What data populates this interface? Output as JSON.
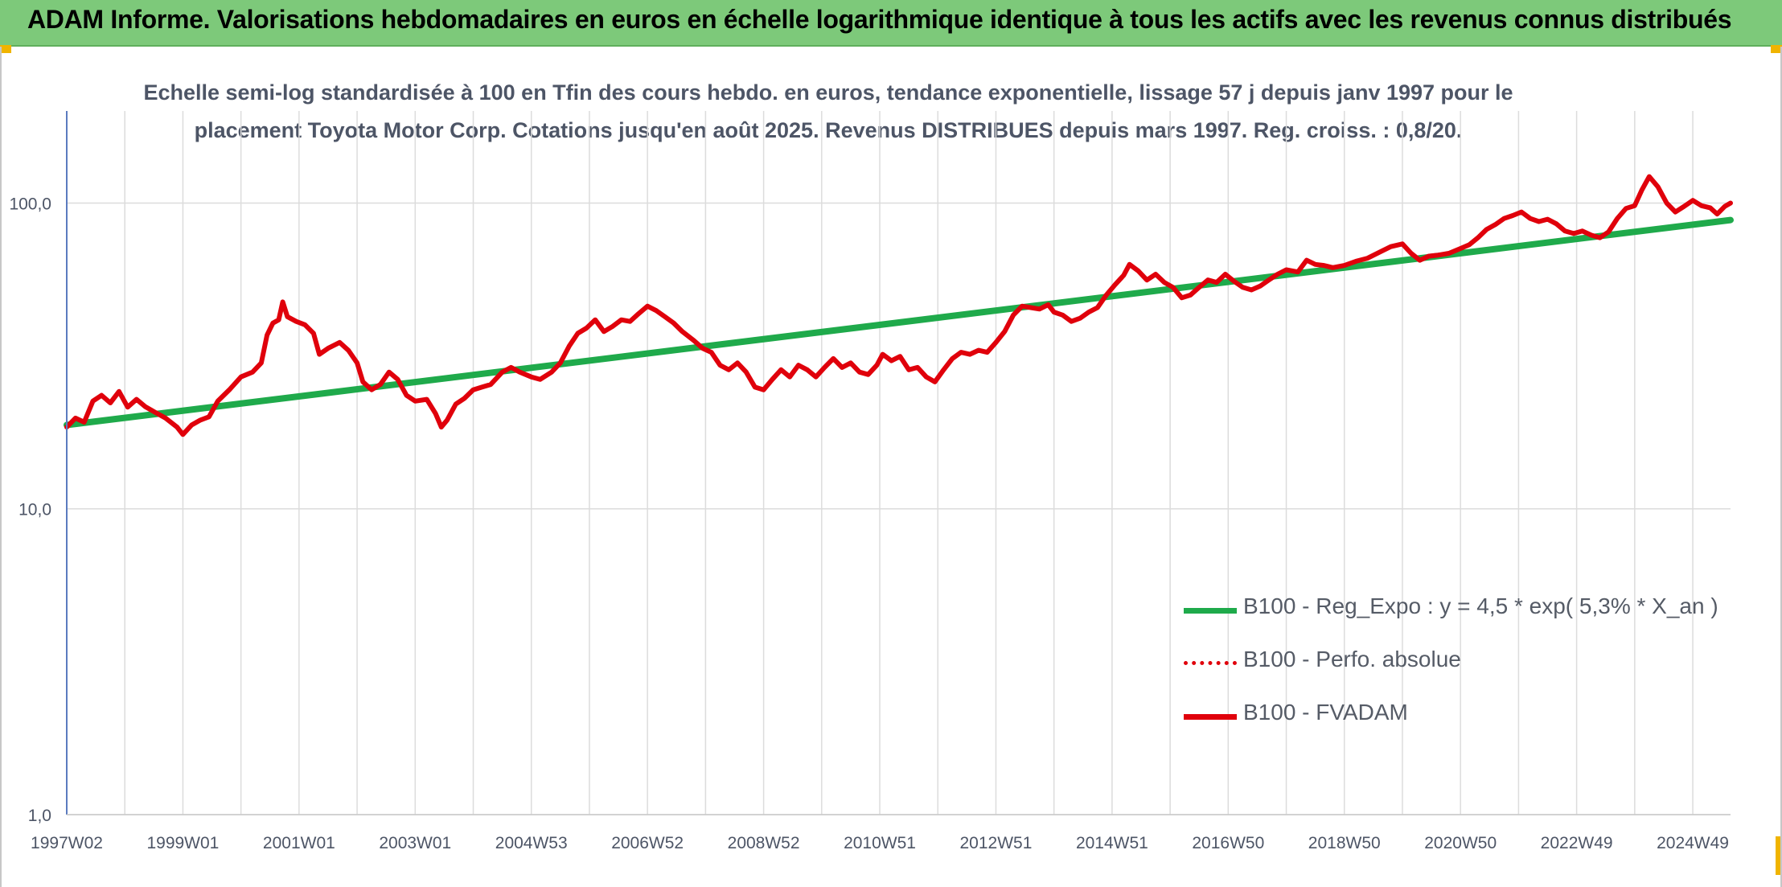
{
  "header": {
    "title": "ADAM Informe. Valorisations hebdomadaires en euros en échelle logarithmique identique à tous les actifs avec les revenus connus distribués"
  },
  "chart_data": {
    "type": "line",
    "title_lines": [
      "Echelle semi-log standardisée à 100 en Tfin des cours hebdo. en euros, tendance exponentielle, lissage 57 j depuis janv 1997 pour le",
      "placement Toyota Motor Corp. Cotations jusqu'en août 2025. Revenus DISTRIBUES depuis mars 1997. Reg. croiss. : 0,8/20."
    ],
    "y_scale": "log",
    "ylim": [
      1,
      200
    ],
    "y_ticks": [
      "1,0",
      "10,0",
      "100,0"
    ],
    "x_range": [
      1997.0,
      2025.65
    ],
    "x_ticks": [
      {
        "label": "1997W02",
        "year": 1997.0
      },
      {
        "label": "1999W01",
        "year": 1999.0
      },
      {
        "label": "2001W01",
        "year": 2001.0
      },
      {
        "label": "2003W01",
        "year": 2003.0
      },
      {
        "label": "2004W53",
        "year": 2005.0
      },
      {
        "label": "2006W52",
        "year": 2007.0
      },
      {
        "label": "2008W52",
        "year": 2009.0
      },
      {
        "label": "2010W51",
        "year": 2011.0
      },
      {
        "label": "2012W51",
        "year": 2013.0
      },
      {
        "label": "2014W51",
        "year": 2015.0
      },
      {
        "label": "2016W50",
        "year": 2017.0
      },
      {
        "label": "2018W50",
        "year": 2019.0
      },
      {
        "label": "2020W50",
        "year": 2021.0
      },
      {
        "label": "2022W49",
        "year": 2023.0
      },
      {
        "label": "2024W49",
        "year": 2025.0
      }
    ],
    "grid": "vertical-and-horizontal",
    "legend_position": "bottom-right",
    "series": [
      {
        "name": "B100 - Reg_Expo : y = 4,5 * exp( 5,3% *  X_an )",
        "color": "#1faa4b",
        "style": "solid",
        "points": [
          [
            1997.0,
            18.8
          ],
          [
            2025.65,
            88.0
          ]
        ]
      },
      {
        "name": "B100 - Perfo. absolue",
        "color": "#e0000b",
        "style": "dotted",
        "points": []
      },
      {
        "name": "B100 - FVADAM",
        "color": "#e0000b",
        "style": "solid",
        "points": [
          [
            1997.0,
            18.5
          ],
          [
            1997.15,
            19.8
          ],
          [
            1997.3,
            19.2
          ],
          [
            1997.45,
            22.5
          ],
          [
            1997.6,
            23.5
          ],
          [
            1997.75,
            22.2
          ],
          [
            1997.9,
            24.2
          ],
          [
            1998.05,
            21.5
          ],
          [
            1998.2,
            22.8
          ],
          [
            1998.35,
            21.6
          ],
          [
            1998.5,
            20.8
          ],
          [
            1998.7,
            19.8
          ],
          [
            1998.9,
            18.5
          ],
          [
            1999.0,
            17.5
          ],
          [
            1999.15,
            18.8
          ],
          [
            1999.3,
            19.5
          ],
          [
            1999.45,
            20.0
          ],
          [
            1999.6,
            22.5
          ],
          [
            1999.8,
            24.5
          ],
          [
            2000.0,
            27.0
          ],
          [
            2000.2,
            28.0
          ],
          [
            2000.35,
            30.0
          ],
          [
            2000.45,
            37.0
          ],
          [
            2000.55,
            40.5
          ],
          [
            2000.65,
            41.5
          ],
          [
            2000.72,
            47.5
          ],
          [
            2000.8,
            42.5
          ],
          [
            2000.95,
            41.0
          ],
          [
            2001.1,
            40.0
          ],
          [
            2001.25,
            37.5
          ],
          [
            2001.35,
            32.0
          ],
          [
            2001.5,
            33.5
          ],
          [
            2001.7,
            35.0
          ],
          [
            2001.85,
            33.0
          ],
          [
            2002.0,
            30.0
          ],
          [
            2002.1,
            26.0
          ],
          [
            2002.25,
            24.5
          ],
          [
            2002.4,
            25.5
          ],
          [
            2002.55,
            28.0
          ],
          [
            2002.7,
            26.5
          ],
          [
            2002.85,
            23.5
          ],
          [
            2003.0,
            22.5
          ],
          [
            2003.2,
            22.8
          ],
          [
            2003.35,
            20.5
          ],
          [
            2003.45,
            18.5
          ],
          [
            2003.55,
            19.5
          ],
          [
            2003.7,
            22.0
          ],
          [
            2003.85,
            23.0
          ],
          [
            2004.0,
            24.5
          ],
          [
            2004.15,
            25.0
          ],
          [
            2004.3,
            25.5
          ],
          [
            2004.5,
            28.0
          ],
          [
            2004.65,
            29.0
          ],
          [
            2004.8,
            28.0
          ],
          [
            2005.0,
            27.0
          ],
          [
            2005.15,
            26.5
          ],
          [
            2005.35,
            28.0
          ],
          [
            2005.5,
            30.0
          ],
          [
            2005.65,
            34.0
          ],
          [
            2005.8,
            37.5
          ],
          [
            2005.95,
            39.0
          ],
          [
            2006.1,
            41.5
          ],
          [
            2006.25,
            38.0
          ],
          [
            2006.4,
            39.5
          ],
          [
            2006.55,
            41.5
          ],
          [
            2006.7,
            41.0
          ],
          [
            2006.85,
            43.5
          ],
          [
            2007.0,
            46.0
          ],
          [
            2007.15,
            44.5
          ],
          [
            2007.3,
            42.5
          ],
          [
            2007.45,
            40.5
          ],
          [
            2007.6,
            38.0
          ],
          [
            2007.8,
            35.5
          ],
          [
            2007.95,
            33.5
          ],
          [
            2008.1,
            32.5
          ],
          [
            2008.25,
            29.5
          ],
          [
            2008.4,
            28.5
          ],
          [
            2008.55,
            30.0
          ],
          [
            2008.7,
            28.0
          ],
          [
            2008.85,
            25.0
          ],
          [
            2009.0,
            24.5
          ],
          [
            2009.15,
            26.5
          ],
          [
            2009.3,
            28.5
          ],
          [
            2009.45,
            27.0
          ],
          [
            2009.6,
            29.5
          ],
          [
            2009.75,
            28.5
          ],
          [
            2009.9,
            27.0
          ],
          [
            2010.05,
            29.0
          ],
          [
            2010.2,
            31.0
          ],
          [
            2010.35,
            29.0
          ],
          [
            2010.5,
            30.0
          ],
          [
            2010.65,
            28.0
          ],
          [
            2010.8,
            27.5
          ],
          [
            2010.95,
            29.5
          ],
          [
            2011.05,
            32.0
          ],
          [
            2011.2,
            30.5
          ],
          [
            2011.35,
            31.5
          ],
          [
            2011.5,
            28.5
          ],
          [
            2011.65,
            29.0
          ],
          [
            2011.8,
            27.0
          ],
          [
            2011.95,
            26.0
          ],
          [
            2012.1,
            28.5
          ],
          [
            2012.25,
            31.0
          ],
          [
            2012.4,
            32.5
          ],
          [
            2012.55,
            32.0
          ],
          [
            2012.7,
            33.0
          ],
          [
            2012.85,
            32.5
          ],
          [
            2013.0,
            35.0
          ],
          [
            2013.15,
            38.0
          ],
          [
            2013.3,
            43.0
          ],
          [
            2013.45,
            46.0
          ],
          [
            2013.6,
            45.5
          ],
          [
            2013.75,
            45.0
          ],
          [
            2013.9,
            46.5
          ],
          [
            2014.0,
            44.0
          ],
          [
            2014.15,
            43.0
          ],
          [
            2014.3,
            41.0
          ],
          [
            2014.45,
            42.0
          ],
          [
            2014.6,
            44.0
          ],
          [
            2014.75,
            45.5
          ],
          [
            2014.9,
            50.0
          ],
          [
            2015.05,
            54.0
          ],
          [
            2015.2,
            58.0
          ],
          [
            2015.3,
            63.0
          ],
          [
            2015.45,
            60.0
          ],
          [
            2015.6,
            56.0
          ],
          [
            2015.75,
            58.5
          ],
          [
            2015.9,
            55.0
          ],
          [
            2016.05,
            53.0
          ],
          [
            2016.2,
            49.0
          ],
          [
            2016.35,
            50.0
          ],
          [
            2016.5,
            53.0
          ],
          [
            2016.65,
            56.0
          ],
          [
            2016.8,
            55.0
          ],
          [
            2016.95,
            58.5
          ],
          [
            2017.1,
            55.5
          ],
          [
            2017.25,
            53.0
          ],
          [
            2017.4,
            52.0
          ],
          [
            2017.55,
            53.5
          ],
          [
            2017.7,
            56.0
          ],
          [
            2017.85,
            58.5
          ],
          [
            2018.0,
            60.5
          ],
          [
            2018.2,
            59.5
          ],
          [
            2018.35,
            65.0
          ],
          [
            2018.5,
            63.0
          ],
          [
            2018.65,
            62.5
          ],
          [
            2018.8,
            61.5
          ],
          [
            2019.0,
            62.5
          ],
          [
            2019.2,
            64.5
          ],
          [
            2019.4,
            66.0
          ],
          [
            2019.6,
            69.0
          ],
          [
            2019.8,
            72.0
          ],
          [
            2020.0,
            73.5
          ],
          [
            2020.15,
            68.5
          ],
          [
            2020.3,
            65.0
          ],
          [
            2020.45,
            67.0
          ],
          [
            2020.6,
            67.5
          ],
          [
            2020.8,
            68.5
          ],
          [
            2021.0,
            71.0
          ],
          [
            2021.15,
            73.0
          ],
          [
            2021.3,
            77.0
          ],
          [
            2021.45,
            82.0
          ],
          [
            2021.6,
            85.0
          ],
          [
            2021.75,
            89.0
          ],
          [
            2021.9,
            91.0
          ],
          [
            2022.05,
            93.5
          ],
          [
            2022.2,
            89.0
          ],
          [
            2022.35,
            87.0
          ],
          [
            2022.5,
            88.5
          ],
          [
            2022.65,
            85.5
          ],
          [
            2022.8,
            81.0
          ],
          [
            2022.95,
            79.5
          ],
          [
            2023.1,
            81.0
          ],
          [
            2023.25,
            78.5
          ],
          [
            2023.4,
            77.0
          ],
          [
            2023.55,
            80.5
          ],
          [
            2023.7,
            89.0
          ],
          [
            2023.85,
            96.0
          ],
          [
            2024.0,
            98.0
          ],
          [
            2024.12,
            110.0
          ],
          [
            2024.25,
            122.0
          ],
          [
            2024.4,
            113.0
          ],
          [
            2024.55,
            100.0
          ],
          [
            2024.7,
            93.5
          ],
          [
            2024.85,
            97.5
          ],
          [
            2025.0,
            102.0
          ],
          [
            2025.15,
            98.0
          ],
          [
            2025.3,
            96.5
          ],
          [
            2025.42,
            92.0
          ],
          [
            2025.55,
            97.5
          ],
          [
            2025.65,
            100.0
          ]
        ]
      }
    ]
  }
}
